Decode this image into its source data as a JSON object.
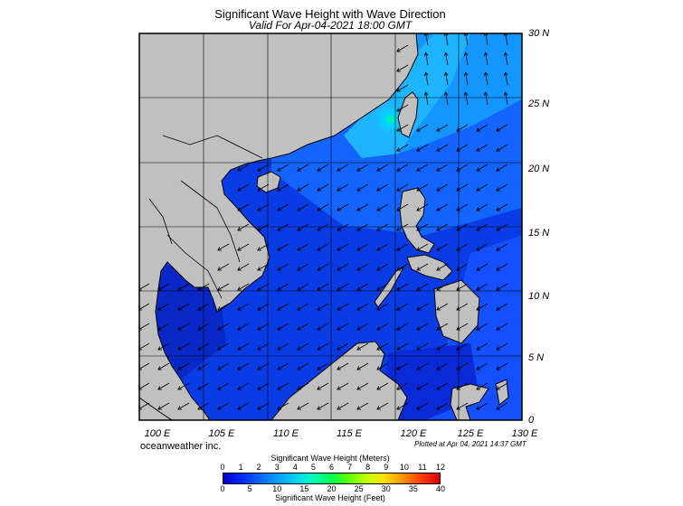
{
  "title": "Significant Wave Height with Wave Direction",
  "subtitle": "Valid For Apr-04-2021 18:00 GMT",
  "credit": "oceanweather inc.",
  "plotted": "Plotted at Apr 04, 2021 14:37 GMT",
  "lat_labels": [
    "30 N",
    "25 N",
    "20 N",
    "15 N",
    "10 N",
    "5 N",
    "0"
  ],
  "lon_labels": [
    "100 E",
    "105 E",
    "110 E",
    "115 E",
    "120 E",
    "125 E",
    "130 E"
  ],
  "colorbar": {
    "title_meters": "Significant Wave Height (Meters)",
    "title_feet": "Significant Wave Height (Feet)",
    "meters_ticks": [
      "0",
      "1",
      "2",
      "3",
      "4",
      "5",
      "6",
      "7",
      "8",
      "9",
      "10",
      "11",
      "12"
    ],
    "feet_ticks": [
      "0",
      "5",
      "10",
      "15",
      "20",
      "25",
      "30",
      "35",
      "40"
    ],
    "colors": [
      "#0000c8",
      "#0028ff",
      "#0064ff",
      "#00a0ff",
      "#00d2ff",
      "#00ffb4",
      "#00ff50",
      "#64ff00",
      "#c8ff00",
      "#ffdc00",
      "#ff8c00",
      "#ff3c00",
      "#dc0000"
    ]
  },
  "colors": {
    "land": "#c0c0c0",
    "ocean_low": "#0a28dc",
    "ocean_mid": "#1e6eff",
    "ocean_high": "#00c8ff"
  }
}
